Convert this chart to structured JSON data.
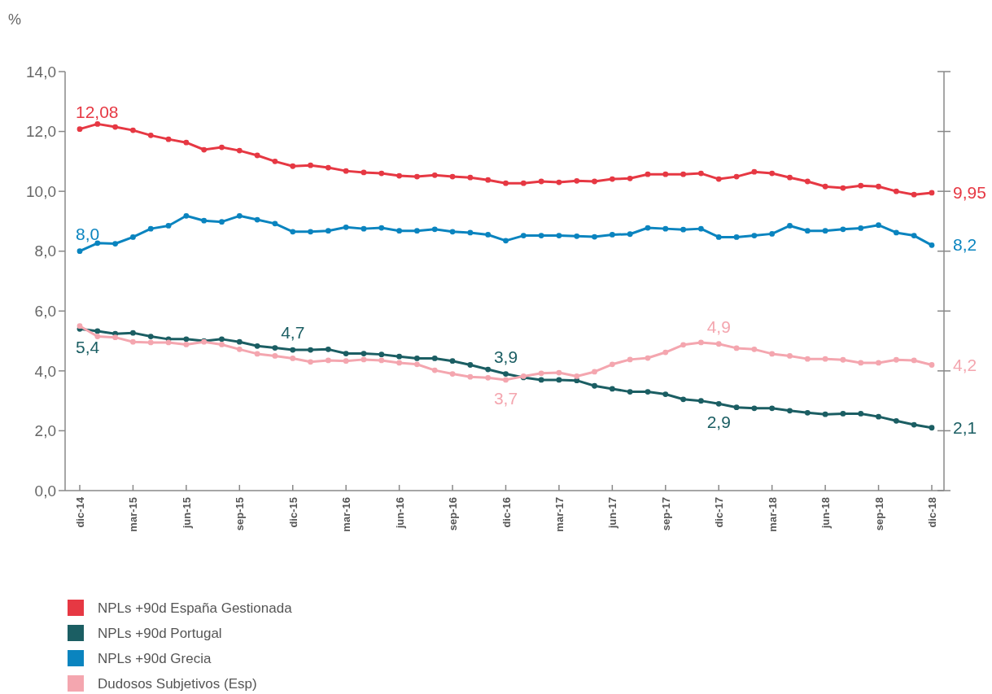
{
  "chart_data": {
    "type": "line",
    "ylabel": "%",
    "categories": [
      "dic-14",
      null,
      null,
      "mar-15",
      null,
      null,
      "jun-15",
      null,
      null,
      "sep-15",
      null,
      null,
      "dic-15",
      null,
      null,
      "mar-16",
      null,
      null,
      "jun-16",
      null,
      null,
      "sep-16",
      null,
      null,
      "dic-16",
      null,
      null,
      "mar-17",
      null,
      null,
      "jun-17",
      null,
      null,
      "sep-17",
      null,
      null,
      "dic-17",
      null,
      null,
      "mar-18",
      null,
      null,
      "jun-18",
      null,
      null,
      "sep-18",
      null,
      null,
      "dic-18"
    ],
    "ylim": [
      0,
      14
    ],
    "yticks": [
      {
        "value": 0,
        "label": "0,0"
      },
      {
        "value": 2,
        "label": "2,0"
      },
      {
        "value": 4,
        "label": "4,0"
      },
      {
        "value": 6,
        "label": "6,0"
      },
      {
        "value": 8,
        "label": "8,0"
      },
      {
        "value": 10,
        "label": "10,0"
      },
      {
        "value": 12,
        "label": "12,0"
      },
      {
        "value": 14,
        "label": "14,0"
      }
    ],
    "grid": false,
    "legend": "bottom left",
    "marker": "circle",
    "line_style": "solid",
    "series": [
      {
        "name": "NPLs +90d España Gestionada",
        "color": "#e63843",
        "values": [
          12.08,
          12.25,
          12.15,
          12.04,
          11.87,
          11.74,
          11.63,
          11.39,
          11.47,
          11.36,
          11.2,
          11.0,
          10.84,
          10.87,
          10.79,
          10.68,
          10.63,
          10.6,
          10.52,
          10.49,
          10.54,
          10.49,
          10.46,
          10.38,
          10.27,
          10.27,
          10.33,
          10.3,
          10.35,
          10.33,
          10.41,
          10.43,
          10.57,
          10.57,
          10.57,
          10.6,
          10.41,
          10.49,
          10.65,
          10.6,
          10.46,
          10.33,
          10.16,
          10.11,
          10.19,
          10.16,
          10.0,
          9.89,
          9.95
        ],
        "value_labels": [
          "12,08",
          null,
          null,
          null,
          null,
          null,
          null,
          null,
          null,
          null,
          null,
          null,
          null,
          null,
          null,
          null,
          null,
          null,
          null,
          null,
          null,
          null,
          null,
          null,
          null,
          null,
          null,
          null,
          null,
          null,
          null,
          null,
          null,
          null,
          null,
          null,
          null,
          null,
          null,
          null,
          null,
          null,
          null,
          null,
          null,
          null,
          null,
          null,
          "9,95"
        ]
      },
      {
        "name": "NPLs +90d Portugal",
        "color": "#1b5e63",
        "values": [
          5.4,
          5.33,
          5.24,
          5.27,
          5.15,
          5.06,
          5.06,
          5.0,
          5.06,
          4.97,
          4.83,
          4.77,
          4.7,
          4.7,
          4.72,
          4.58,
          4.58,
          4.55,
          4.48,
          4.42,
          4.42,
          4.33,
          4.2,
          4.05,
          3.9,
          3.78,
          3.7,
          3.7,
          3.68,
          3.5,
          3.4,
          3.3,
          3.3,
          3.22,
          3.05,
          3.0,
          2.9,
          2.78,
          2.75,
          2.75,
          2.67,
          2.6,
          2.55,
          2.57,
          2.57,
          2.47,
          2.33,
          2.2,
          2.1
        ],
        "value_labels": [
          "5,4",
          null,
          null,
          null,
          null,
          null,
          null,
          null,
          null,
          null,
          null,
          null,
          "4,7",
          null,
          null,
          null,
          null,
          null,
          null,
          null,
          null,
          null,
          null,
          null,
          "3,9",
          null,
          null,
          null,
          null,
          null,
          null,
          null,
          null,
          null,
          null,
          null,
          "2,9",
          null,
          null,
          null,
          null,
          null,
          null,
          null,
          null,
          null,
          null,
          null,
          "2,1"
        ]
      },
      {
        "name": "NPLs +90d Grecia",
        "color": "#0a84bf",
        "values": [
          8.0,
          8.27,
          8.25,
          8.47,
          8.75,
          8.85,
          9.18,
          9.02,
          8.98,
          9.18,
          9.05,
          8.92,
          8.65,
          8.65,
          8.68,
          8.8,
          8.75,
          8.78,
          8.68,
          8.68,
          8.73,
          8.65,
          8.62,
          8.55,
          8.35,
          8.52,
          8.52,
          8.52,
          8.5,
          8.48,
          8.55,
          8.57,
          8.78,
          8.75,
          8.72,
          8.75,
          8.47,
          8.47,
          8.52,
          8.58,
          8.85,
          8.68,
          8.68,
          8.73,
          8.77,
          8.87,
          8.62,
          8.52,
          8.2
        ],
        "value_labels": [
          "8,0",
          null,
          null,
          null,
          null,
          null,
          null,
          null,
          null,
          null,
          null,
          null,
          null,
          null,
          null,
          null,
          null,
          null,
          null,
          null,
          null,
          null,
          null,
          null,
          null,
          null,
          null,
          null,
          null,
          null,
          null,
          null,
          null,
          null,
          null,
          null,
          null,
          null,
          null,
          null,
          null,
          null,
          null,
          null,
          null,
          null,
          null,
          null,
          "8,2"
        ]
      },
      {
        "name": "Dudosos Subjetivos (Esp)",
        "color": "#f4a6af",
        "values": [
          5.5,
          5.15,
          5.12,
          4.97,
          4.95,
          4.95,
          4.88,
          4.97,
          4.88,
          4.72,
          4.57,
          4.5,
          4.42,
          4.3,
          4.35,
          4.33,
          4.38,
          4.35,
          4.27,
          4.22,
          4.02,
          3.9,
          3.8,
          3.77,
          3.7,
          3.82,
          3.92,
          3.94,
          3.82,
          3.97,
          4.22,
          4.38,
          4.43,
          4.62,
          4.87,
          4.95,
          4.9,
          4.76,
          4.72,
          4.57,
          4.5,
          4.4,
          4.4,
          4.37,
          4.27,
          4.27,
          4.37,
          4.35,
          4.2
        ],
        "value_labels": [
          null,
          null,
          null,
          null,
          null,
          null,
          null,
          null,
          null,
          null,
          null,
          null,
          null,
          null,
          null,
          null,
          null,
          null,
          null,
          null,
          null,
          null,
          null,
          null,
          "3,7",
          null,
          null,
          null,
          null,
          null,
          null,
          null,
          null,
          null,
          null,
          null,
          "4,9",
          null,
          null,
          null,
          null,
          null,
          null,
          null,
          null,
          null,
          null,
          null,
          "4,2"
        ]
      }
    ]
  }
}
